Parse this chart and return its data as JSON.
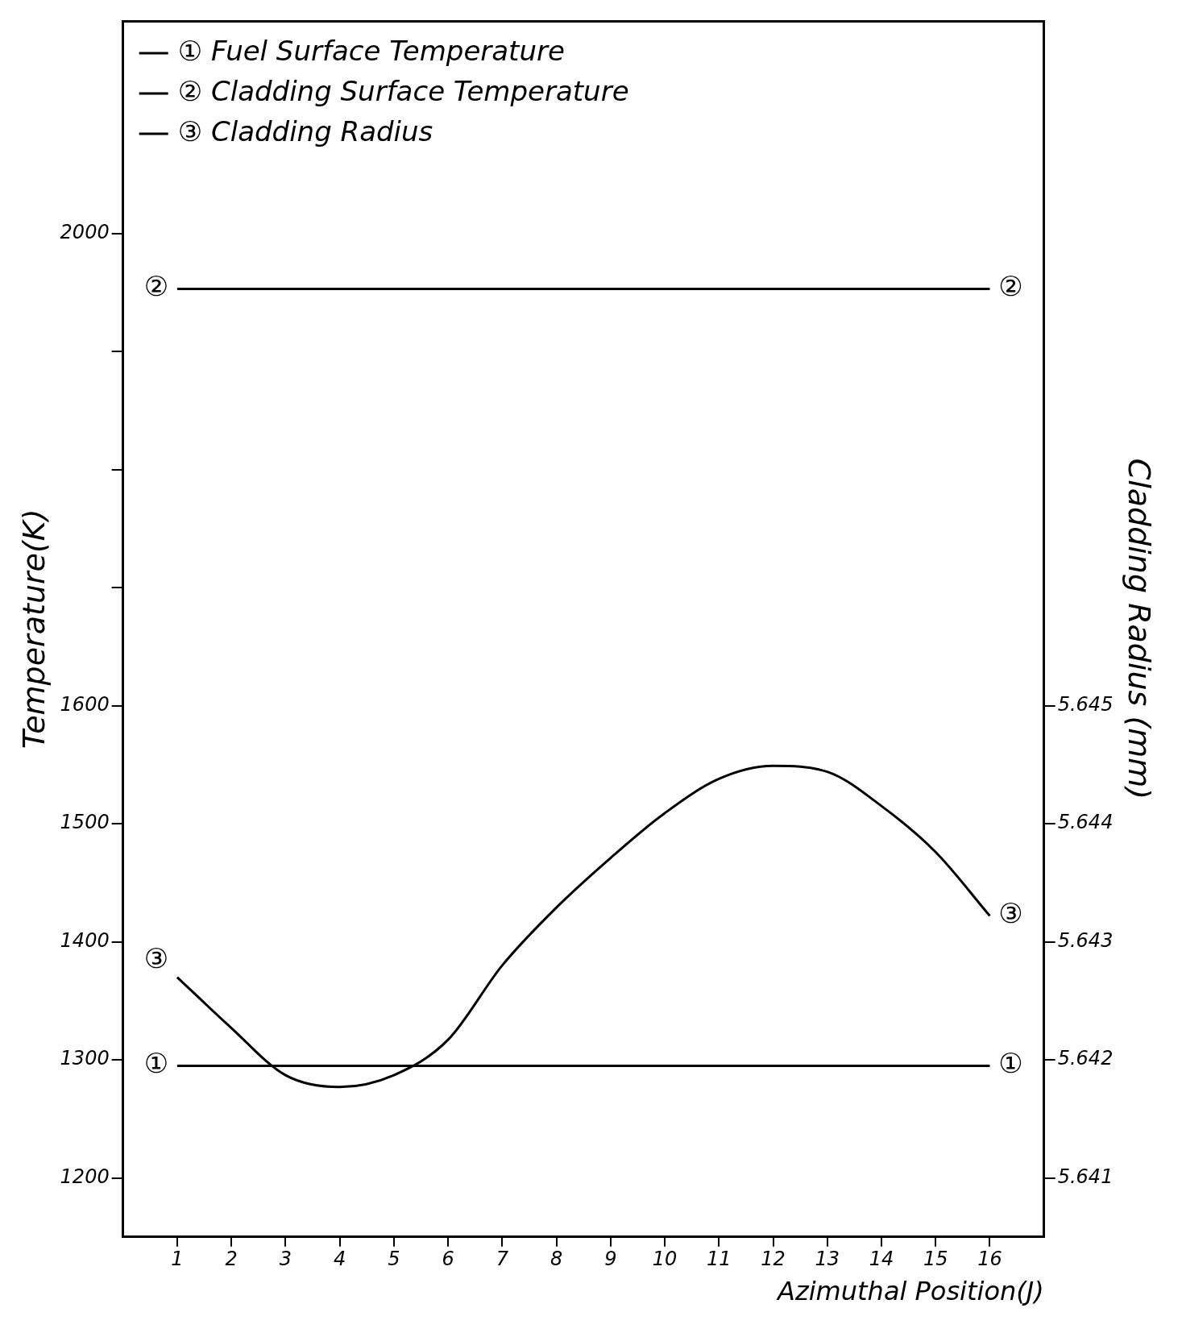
{
  "chart_data": {
    "type": "line",
    "xlabel": "Azimuthal Position(J)",
    "ylabel": "Temperature(K)",
    "y2label": "Cladding Radius (mm)",
    "x": [
      1,
      2,
      3,
      4,
      5,
      6,
      7,
      8,
      9,
      10,
      11,
      12,
      13,
      14,
      15,
      16
    ],
    "xlim": [
      0,
      17
    ],
    "xticks": [
      1,
      2,
      3,
      4,
      5,
      6,
      7,
      8,
      9,
      10,
      11,
      12,
      13,
      14,
      15,
      16
    ],
    "ylim": [
      1150,
      2180
    ],
    "yticks": [
      1200,
      1300,
      1400,
      1500,
      1600,
      {
        "value": 1700,
        "label": null
      },
      {
        "value": 1800,
        "label": null
      },
      {
        "value": 1900,
        "label": null
      },
      2000
    ],
    "y2lim": [
      5.6405,
      5.6508
    ],
    "y2ticks": [
      5.641,
      5.642,
      5.643,
      5.644,
      5.645
    ],
    "series": [
      {
        "name": "① Fuel Surface Temperature",
        "color": "#000000",
        "values": [
          1295,
          1295,
          1295,
          1295,
          1295,
          1295,
          1295,
          1295,
          1295,
          1295,
          1295,
          1295,
          1295,
          1295,
          1295,
          1295
        ]
      },
      {
        "name": "② Cladding Surface Temperature",
        "color": "#000000",
        "values": [
          1953,
          1953,
          1953,
          1953,
          1953,
          1953,
          1953,
          1953,
          1953,
          1953,
          1953,
          1953,
          1953,
          1953,
          1953,
          1953
        ]
      },
      {
        "name": "③ Cladding Radius",
        "color": "#000000",
        "axis": "y2",
        "values": [
          5.6427,
          5.64227,
          5.64187,
          5.64177,
          5.64187,
          5.64217,
          5.6428,
          5.64329,
          5.64371,
          5.64409,
          5.64438,
          5.64449,
          5.64444,
          5.64415,
          5.64376,
          5.64322
        ]
      }
    ],
    "annotations": [
      "①",
      "①",
      "②",
      "②",
      "③",
      "③"
    ],
    "grid": false,
    "legend": "top left",
    "marker": "none",
    "line_style": "solid"
  }
}
